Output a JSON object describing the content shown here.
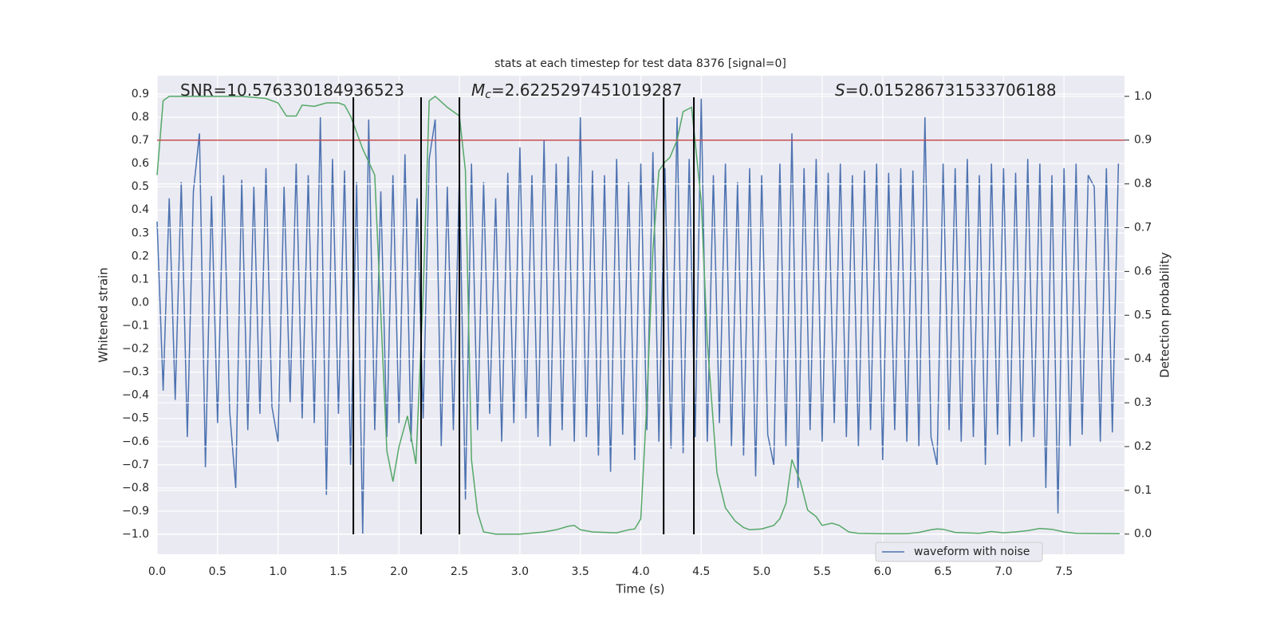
{
  "chart_data": {
    "type": "line",
    "title": "stats at each timestep for test data 8376 [signal=0]",
    "x_label": "Time (s)",
    "y_label": "Whitened strain",
    "y2_label": "Detection probability",
    "xlim": [
      0,
      8
    ],
    "ylim": [
      -1.086,
      0.979
    ],
    "y2lim": [
      -0.046,
      1.047
    ],
    "xticks": [
      {
        "value": 0,
        "label": "0.0"
      },
      0.5,
      {
        "value": 1,
        "label": "1.0"
      },
      1.5,
      {
        "value": 2,
        "label": "2.0"
      },
      2.5,
      {
        "value": 3,
        "label": "3.0"
      },
      3.5,
      {
        "value": 4,
        "label": "4.0"
      },
      4.5,
      {
        "value": 5,
        "label": "5.0"
      },
      5.5,
      {
        "value": 6,
        "label": "6.0"
      },
      6.5,
      {
        "value": 7,
        "label": "7.0"
      },
      7.5
    ],
    "yticks": [
      {
        "value": -1,
        "label": "−1.0"
      },
      {
        "value": -0.9,
        "label": "−0.9"
      },
      {
        "value": -0.8,
        "label": "−0.8"
      },
      {
        "value": -0.7,
        "label": "−0.7"
      },
      {
        "value": -0.6,
        "label": "−0.6"
      },
      {
        "value": -0.5,
        "label": "−0.5"
      },
      {
        "value": -0.4,
        "label": "−0.4"
      },
      {
        "value": -0.3,
        "label": "−0.3"
      },
      {
        "value": -0.2,
        "label": "−0.2"
      },
      {
        "value": -0.1,
        "label": "−0.1"
      },
      {
        "value": 0,
        "label": "0.0"
      },
      0.1,
      0.2,
      0.3,
      0.4,
      0.5,
      0.6,
      0.7,
      0.8,
      0.9
    ],
    "y2ticks": [
      {
        "value": 0,
        "label": "0.0"
      },
      0.1,
      0.2,
      0.3,
      0.4,
      0.5,
      0.6,
      0.7,
      0.8,
      0.9,
      {
        "value": 1,
        "label": "1.0"
      }
    ],
    "grid": true,
    "legend": "lower right",
    "annotations": [
      {
        "text": "SNR=10.576330184936523"
      },
      {
        "symbol": "M",
        "subscript": "c",
        "text": "=2.6225297451019287"
      },
      {
        "symbol": "S",
        "text": "=0.015286731533706188"
      }
    ],
    "series": [
      {
        "name": "waveform with noise",
        "color": "#4c72b0",
        "x": [
          0,
          0.05,
          0.1,
          0.15,
          0.2,
          0.25,
          0.3,
          0.35,
          0.4,
          0.45,
          0.5,
          0.55,
          0.6,
          0.65,
          0.7,
          0.75,
          0.8,
          0.85,
          0.9,
          0.95,
          1,
          1.05,
          1.1,
          1.15,
          1.2,
          1.25,
          1.3,
          1.35,
          1.4,
          1.45,
          1.5,
          1.55,
          1.6,
          1.65,
          1.7,
          1.75,
          1.8,
          1.85,
          1.9,
          1.95,
          2,
          2.05,
          2.1,
          2.15,
          2.2,
          2.25,
          2.3,
          2.35,
          2.4,
          2.45,
          2.5,
          2.55,
          2.6,
          2.65,
          2.7,
          2.75,
          2.8,
          2.85,
          2.9,
          2.95,
          3,
          3.05,
          3.1,
          3.15,
          3.2,
          3.25,
          3.3,
          3.35,
          3.4,
          3.45,
          3.5,
          3.55,
          3.6,
          3.65,
          3.7,
          3.75,
          3.8,
          3.85,
          3.9,
          3.95,
          4,
          4.05,
          4.1,
          4.15,
          4.2,
          4.25,
          4.3,
          4.35,
          4.4,
          4.45,
          4.5,
          4.55,
          4.6,
          4.65,
          4.7,
          4.75,
          4.8,
          4.85,
          4.9,
          4.95,
          5,
          5.05,
          5.1,
          5.15,
          5.2,
          5.25,
          5.3,
          5.35,
          5.4,
          5.45,
          5.5,
          5.55,
          5.6,
          5.65,
          5.7,
          5.75,
          5.8,
          5.85,
          5.9,
          5.95,
          6,
          6.05,
          6.1,
          6.15,
          6.2,
          6.25,
          6.3,
          6.35,
          6.4,
          6.45,
          6.5,
          6.55,
          6.6,
          6.65,
          6.7,
          6.75,
          6.8,
          6.85,
          6.9,
          6.95,
          7,
          7.05,
          7.1,
          7.15,
          7.2,
          7.25,
          7.3,
          7.35,
          7.4,
          7.45,
          7.5,
          7.55,
          7.6,
          7.65,
          7.7,
          7.75,
          7.8,
          7.85,
          7.9,
          7.95
        ],
        "values": [
          0.35,
          -0.38,
          0.45,
          -0.42,
          0.52,
          -0.58,
          0.48,
          0.73,
          -0.71,
          0.46,
          -0.52,
          0.55,
          -0.47,
          -0.8,
          0.53,
          -0.55,
          0.5,
          -0.48,
          0.58,
          -0.45,
          -0.6,
          0.5,
          -0.43,
          0.6,
          -0.5,
          0.55,
          -0.52,
          0.8,
          -0.83,
          0.62,
          -0.48,
          0.57,
          -0.7,
          0.52,
          -1,
          0.79,
          -0.55,
          0.48,
          -0.58,
          0.55,
          -0.52,
          0.64,
          -0.6,
          0.45,
          -0.5,
          0.62,
          0.79,
          -0.62,
          0.5,
          -0.55,
          0.56,
          -0.85,
          0.6,
          -0.55,
          0.52,
          -0.48,
          0.45,
          -0.6,
          0.56,
          -0.52,
          0.67,
          -0.5,
          0.55,
          -0.58,
          0.7,
          -0.62,
          0.6,
          -0.55,
          0.63,
          -0.6,
          0.8,
          -0.58,
          0.57,
          -0.66,
          0.55,
          -0.73,
          0.62,
          -0.57,
          0.52,
          -0.68,
          0.6,
          -0.55,
          0.65,
          -0.6,
          0.58,
          -0.63,
          0.8,
          -0.65,
          0.62,
          -0.58,
          0.88,
          -0.6,
          0.55,
          -0.52,
          0.6,
          -0.62,
          0.52,
          -0.66,
          0.58,
          -0.75,
          0.55,
          -0.57,
          -0.7,
          0.6,
          -0.62,
          0.73,
          -0.8,
          0.58,
          -0.55,
          0.62,
          -0.6,
          0.56,
          -0.52,
          0.6,
          -0.58,
          0.55,
          -0.62,
          0.57,
          -0.55,
          0.6,
          -0.68,
          0.56,
          -0.55,
          0.58,
          -0.6,
          0.57,
          -0.62,
          0.8,
          -0.58,
          -0.7,
          0.6,
          -0.55,
          0.58,
          -0.6,
          0.62,
          -0.58,
          0.55,
          -0.7,
          0.6,
          -0.57,
          0.58,
          -0.62,
          0.56,
          -0.6,
          0.62,
          -0.58,
          0.6,
          -0.8,
          0.55,
          -0.91,
          0.58,
          -0.62,
          0.6,
          -0.57,
          0.55,
          0.5,
          -0.6,
          0.58,
          -0.56,
          0.6
        ]
      },
      {
        "color": "#55a868",
        "axis": "y2",
        "x": [
          0,
          0.05,
          0.1,
          0.3,
          0.5,
          0.7,
          0.9,
          1,
          1.07,
          1.15,
          1.2,
          1.3,
          1.4,
          1.5,
          1.55,
          1.6,
          1.7,
          1.8,
          1.9,
          1.95,
          2,
          2.07,
          2.14,
          2.2,
          2.25,
          2.3,
          2.4,
          2.5,
          2.55,
          2.6,
          2.65,
          2.7,
          2.8,
          3,
          3.2,
          3.3,
          3.4,
          3.45,
          3.5,
          3.6,
          3.8,
          3.9,
          3.95,
          4,
          4.05,
          4.1,
          4.15,
          4.2,
          4.24,
          4.3,
          4.35,
          4.42,
          4.5,
          4.55,
          4.63,
          4.7,
          4.78,
          4.85,
          4.9,
          5,
          5.1,
          5.15,
          5.2,
          5.25,
          5.32,
          5.38,
          5.45,
          5.5,
          5.58,
          5.64,
          5.72,
          5.8,
          6,
          6.2,
          6.3,
          6.4,
          6.45,
          6.5,
          6.6,
          6.8,
          6.9,
          7,
          7.1,
          7.2,
          7.3,
          7.4,
          7.5,
          7.6,
          7.96
        ],
        "values": [
          0.82,
          0.99,
          1,
          1,
          1,
          1,
          0.995,
          0.985,
          0.955,
          0.955,
          0.98,
          0.977,
          0.985,
          0.985,
          0.98,
          0.955,
          0.88,
          0.82,
          0.19,
          0.12,
          0.2,
          0.27,
          0.16,
          0.55,
          0.99,
          1,
          0.975,
          0.955,
          0.83,
          0.17,
          0.05,
          0.005,
          0,
          0,
          0.005,
          0.01,
          0.018,
          0.02,
          0.01,
          0.005,
          0.003,
          0.01,
          0.012,
          0.035,
          0.3,
          0.65,
          0.83,
          0.85,
          0.86,
          0.9,
          0.965,
          0.975,
          0.76,
          0.44,
          0.14,
          0.06,
          0.03,
          0.015,
          0.01,
          0.012,
          0.02,
          0.035,
          0.07,
          0.17,
          0.12,
          0.055,
          0.04,
          0.02,
          0.025,
          0.02,
          0.005,
          0.002,
          0.001,
          0.001,
          0.004,
          0.01,
          0.012,
          0.011,
          0.004,
          0.002,
          0.006,
          0.003,
          0.005,
          0.008,
          0.013,
          0.011,
          0.005,
          0.002,
          0.001
        ]
      }
    ],
    "hlines": [
      {
        "value": 0.9,
        "axis": "y2",
        "color": "#c44e52"
      }
    ],
    "vlines": {
      "values": [
        1.623,
        2.183,
        2.5,
        4.189,
        4.439
      ],
      "color": "#000000"
    }
  }
}
